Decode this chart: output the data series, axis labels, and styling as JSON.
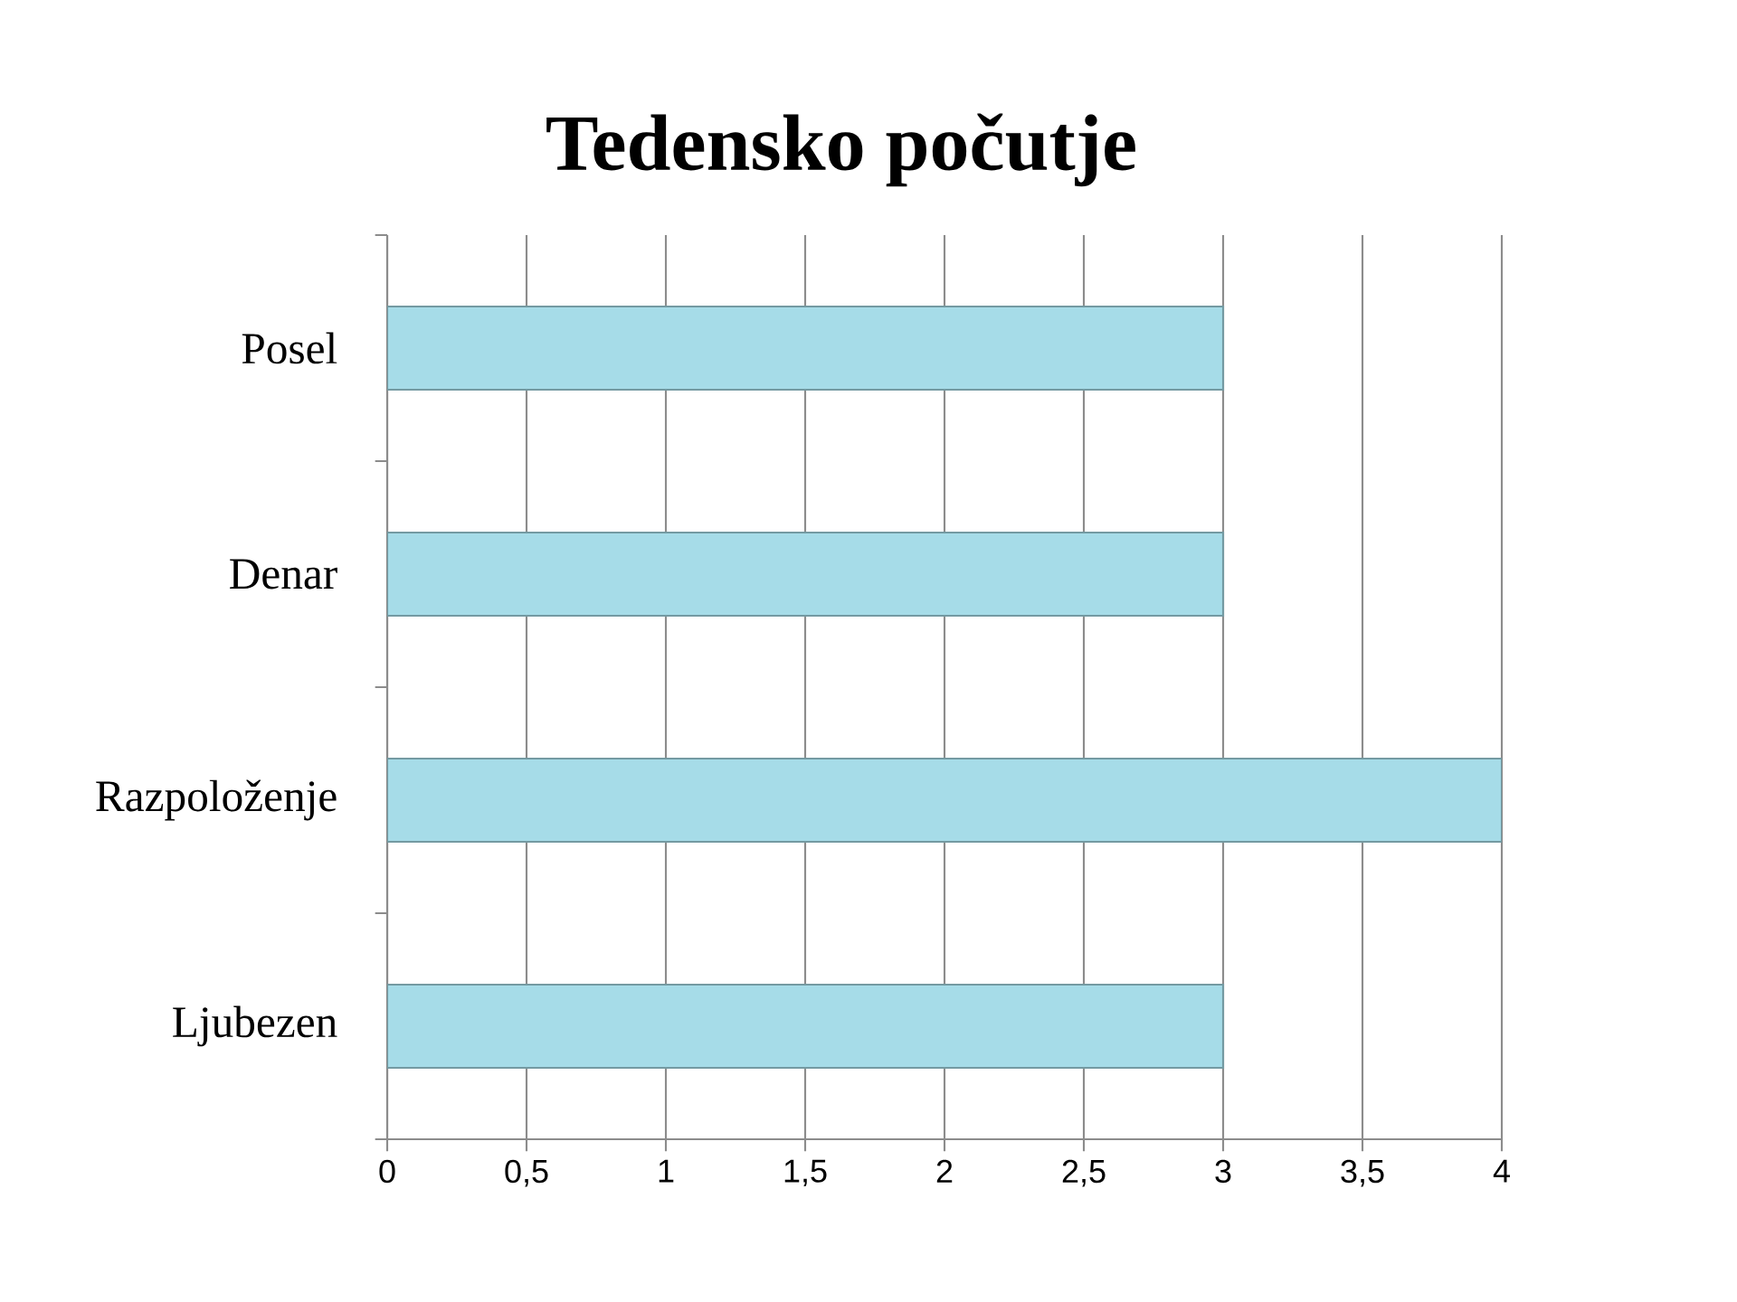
{
  "chart_data": {
    "type": "bar",
    "orientation": "horizontal",
    "title": "Tedensko počutje",
    "categories": [
      "Posel",
      "Denar",
      "Razpoloženje",
      "Ljubezen"
    ],
    "values": [
      3,
      3,
      4,
      3
    ],
    "color": "#a6dce8",
    "xlim": [
      0,
      4
    ],
    "xticks": [
      0,
      {
        "value": 0.5,
        "label": "0,5"
      },
      1,
      {
        "value": 1.5,
        "label": "1,5"
      },
      2,
      {
        "value": 2.5,
        "label": "2,5"
      },
      3,
      {
        "value": 3.5,
        "label": "3,5"
      },
      4
    ],
    "grid": "x"
  }
}
